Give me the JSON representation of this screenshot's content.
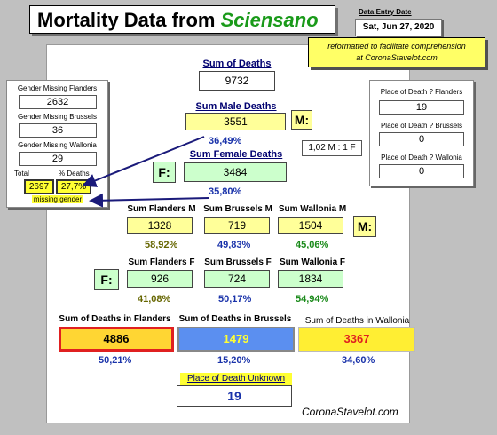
{
  "title": {
    "main": "Mortality Data from ",
    "brand": "Sciensano"
  },
  "entry": {
    "label": "Data Entry Date",
    "date": "Sat, Jun 27, 2020"
  },
  "note": {
    "line1": "reformatted to facilitate comprehension",
    "line2": "at CoronaStavelot.com"
  },
  "sum_deaths": {
    "label": "Sum of Deaths",
    "value": "9732"
  },
  "male": {
    "label": "Sum Male Deaths",
    "value": "3551",
    "tag": "M:",
    "pct": "36,49%"
  },
  "female": {
    "label": "Sum Female Deaths",
    "value": "3484",
    "tag": "F:",
    "pct": "35,80%"
  },
  "ratio": "1,02 M : 1 F",
  "gender_missing": {
    "flanders_label": "Gender Missing Flanders",
    "flanders_value": "2632",
    "brussels_label": "Gender Missing Brussels",
    "brussels_value": "36",
    "wallonia_label": "Gender Missing Wallonia",
    "wallonia_value": "29",
    "total_label": "Total",
    "pct_label": "% Deaths",
    "total_value": "2697",
    "pct_value": "27,7%",
    "footer": "missing gender"
  },
  "place_of_death": {
    "flanders_label": "Place of Death ? Flanders",
    "flanders_value": "19",
    "brussels_label": "Place of Death ? Brussels",
    "brussels_value": "0",
    "wallonia_label": "Place of Death ? Wallonia",
    "wallonia_value": "0"
  },
  "male_regions": {
    "flanders_label": "Sum Flanders M",
    "flanders_value": "1328",
    "flanders_pct": "58,92%",
    "brussels_label": "Sum Brussels M",
    "brussels_value": "719",
    "brussels_pct": "49,83%",
    "wallonia_label": "Sum Wallonia M",
    "wallonia_value": "1504",
    "wallonia_pct": "45,06%",
    "tag": "M:"
  },
  "female_regions": {
    "flanders_label": "Sum Flanders F",
    "flanders_value": "926",
    "flanders_pct": "41,08%",
    "brussels_label": "Sum Brussels F",
    "brussels_value": "724",
    "brussels_pct": "50,17%",
    "wallonia_label": "Sum Wallonia F",
    "wallonia_value": "1834",
    "wallonia_pct": "54,94%",
    "tag": "F:"
  },
  "regions": {
    "flanders_label": "Sum of Deaths in Flanders",
    "flanders_value": "4886",
    "flanders_pct": "50,21%",
    "brussels_label": "Sum of Deaths in Brussels",
    "brussels_value": "1479",
    "brussels_pct": "15,20%",
    "wallonia_label": "Sum of Deaths in Wallonia",
    "wallonia_value": "3367",
    "wallonia_pct": "34,60%"
  },
  "unknown": {
    "label": "Place of Death Unknown",
    "value": "19"
  },
  "footer": "CoronaStavelot.com",
  "colors": {
    "flanders": "#ffd633",
    "brussels": "#5b8ff0",
    "wallonia": "#ffee33",
    "brand": "#1a9a1a"
  }
}
